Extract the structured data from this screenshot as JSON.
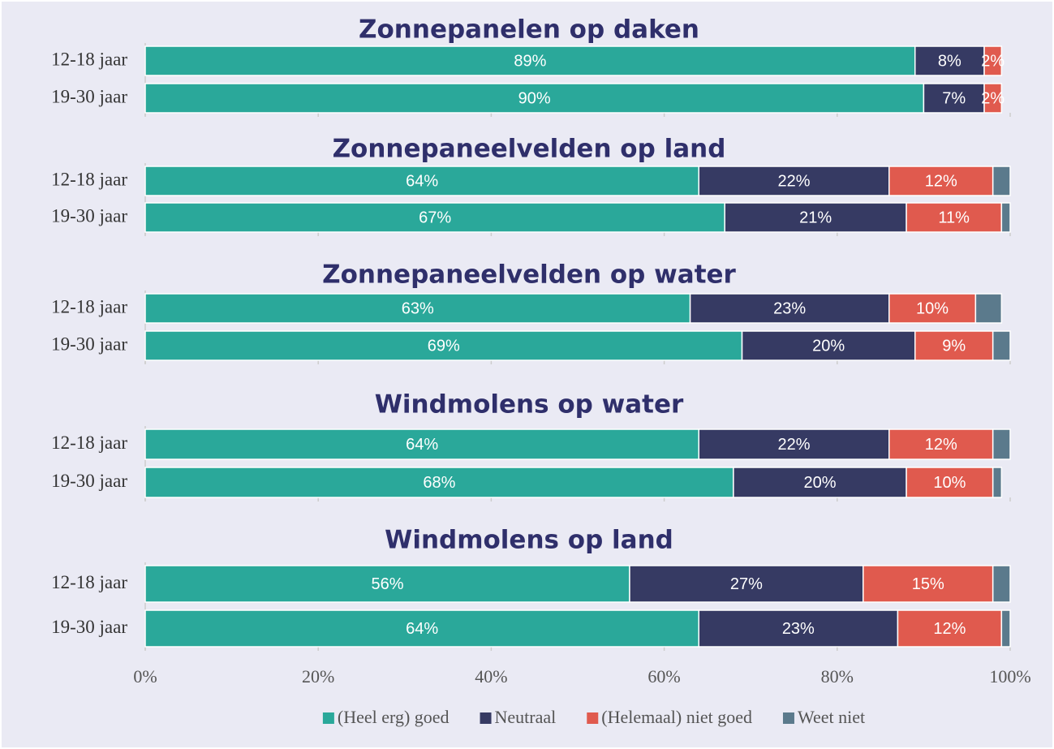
{
  "chart_data": [
    {
      "type": "bar",
      "orientation": "horizontal",
      "stacked": true,
      "title": "Zonnepanelen op daken",
      "categories": [
        "12-18 jaar",
        "19-30 jaar"
      ],
      "xlim": [
        0,
        100
      ],
      "series": [
        {
          "color": "#2aa89a",
          "values": [
            89,
            90
          ],
          "value_labels": [
            "89%",
            "90%"
          ]
        },
        {
          "color": "#363a63",
          "values": [
            8,
            7
          ],
          "value_labels": [
            "8%",
            "7%"
          ]
        },
        {
          "color": "#e05a4e",
          "values": [
            2,
            2
          ],
          "value_labels": [
            "2%",
            "2%"
          ]
        },
        {
          "color": "#5b7a8c",
          "values": [
            0,
            0
          ]
        }
      ]
    },
    {
      "type": "bar",
      "orientation": "horizontal",
      "stacked": true,
      "title": "Zonnepaneelvelden op land",
      "categories": [
        "12-18 jaar",
        "19-30 jaar"
      ],
      "xlim": [
        0,
        100
      ],
      "series": [
        {
          "color": "#2aa89a",
          "values": [
            64,
            67
          ],
          "value_labels": [
            "64%",
            "67%"
          ]
        },
        {
          "color": "#363a63",
          "values": [
            22,
            21
          ],
          "value_labels": [
            "22%",
            "21%"
          ]
        },
        {
          "color": "#e05a4e",
          "values": [
            12,
            11
          ],
          "value_labels": [
            "12%",
            "11%"
          ]
        },
        {
          "color": "#5b7a8c",
          "values": [
            2,
            1
          ]
        }
      ]
    },
    {
      "type": "bar",
      "orientation": "horizontal",
      "stacked": true,
      "title": "Zonnepaneelvelden op water",
      "categories": [
        "12-18 jaar",
        "19-30 jaar"
      ],
      "xlim": [
        0,
        100
      ],
      "series": [
        {
          "color": "#2aa89a",
          "values": [
            63,
            69
          ],
          "value_labels": [
            "63%",
            "69%"
          ]
        },
        {
          "color": "#363a63",
          "values": [
            23,
            20
          ],
          "value_labels": [
            "23%",
            "20%"
          ]
        },
        {
          "color": "#e05a4e",
          "values": [
            10,
            9
          ],
          "value_labels": [
            "10%",
            "9%"
          ]
        },
        {
          "color": "#5b7a8c",
          "values": [
            3,
            2
          ]
        }
      ]
    },
    {
      "type": "bar",
      "orientation": "horizontal",
      "stacked": true,
      "title": "Windmolens op water",
      "categories": [
        "12-18 jaar",
        "19-30 jaar"
      ],
      "xlim": [
        0,
        100
      ],
      "series": [
        {
          "color": "#2aa89a",
          "values": [
            64,
            68
          ],
          "value_labels": [
            "64%",
            "68%"
          ]
        },
        {
          "color": "#363a63",
          "values": [
            22,
            20
          ],
          "value_labels": [
            "22%",
            "20%"
          ]
        },
        {
          "color": "#e05a4e",
          "values": [
            12,
            10
          ],
          "value_labels": [
            "12%",
            "10%"
          ]
        },
        {
          "color": "#5b7a8c",
          "values": [
            2,
            1
          ]
        }
      ]
    },
    {
      "type": "bar",
      "orientation": "horizontal",
      "stacked": true,
      "title": "Windmolens op land",
      "categories": [
        "12-18 jaar",
        "19-30 jaar"
      ],
      "xlim": [
        0,
        100
      ],
      "xticks": [
        {
          "value": 0,
          "label": "0%"
        },
        {
          "value": 20,
          "label": "20%"
        },
        {
          "value": 40,
          "label": "40%"
        },
        {
          "value": 60,
          "label": "60%"
        },
        {
          "value": 80,
          "label": "80%"
        },
        {
          "value": 100,
          "label": "100%"
        }
      ],
      "legend": "bottom",
      "series": [
        {
          "name": "(Heel erg) goed",
          "color": "#2aa89a",
          "values": [
            56,
            64
          ],
          "value_labels": [
            "56%",
            "64%"
          ]
        },
        {
          "name": "Neutraal",
          "color": "#363a63",
          "values": [
            27,
            23
          ],
          "value_labels": [
            "27%",
            "23%"
          ]
        },
        {
          "name": "(Helemaal) niet goed",
          "color": "#e05a4e",
          "values": [
            15,
            12
          ],
          "value_labels": [
            "15%",
            "12%"
          ]
        },
        {
          "name": "Weet niet",
          "color": "#5b7a8c",
          "values": [
            2,
            1
          ]
        }
      ]
    }
  ]
}
